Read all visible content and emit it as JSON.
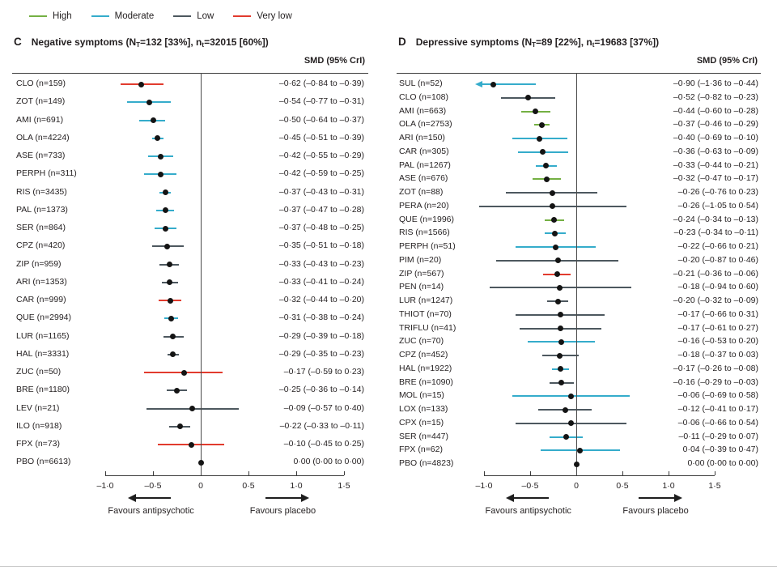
{
  "legend": {
    "items": [
      {
        "label": "High",
        "color": "#74b043"
      },
      {
        "label": "Moderate",
        "color": "#35accb"
      },
      {
        "label": "Low",
        "color": "#4d585f"
      },
      {
        "label": "Very low",
        "color": "#e23b2e"
      }
    ]
  },
  "certainty_colors": {
    "high": "#74b043",
    "moderate": "#35accb",
    "low": "#4d585f",
    "very_low": "#e23b2e"
  },
  "chart_data": [
    {
      "type": "scatter",
      "subtype": "forest-plot",
      "panel_letter": "C",
      "title": "Negative symptoms (NT=132 [33%], nt=32015 [60%])",
      "title_segments": [
        "Negative symptoms (N",
        {
          "sub": "T"
        },
        "=132 [33%], n",
        {
          "sub": "t"
        },
        "=32015 [60%])"
      ],
      "column_header": "SMD (95% CrI)",
      "xlim": [
        -1.0,
        1.5
      ],
      "x_ticks": [
        {
          "label": "–1·0",
          "v": -1.0
        },
        {
          "label": "–0·5",
          "v": -0.5
        },
        {
          "label": "0",
          "v": 0
        },
        {
          "label": "0·5",
          "v": 0.5
        },
        {
          "label": "1·0",
          "v": 1.0
        },
        {
          "label": "1·5",
          "v": 1.5
        }
      ],
      "x_arrow_left_label": "Favours antipsychotic",
      "x_arrow_right_label": "Favours placebo",
      "rows": [
        {
          "drug": "CLO (n=159)",
          "smd_text": "–0·62 (–0·84 to –0·39)",
          "mean": -0.62,
          "lo": -0.84,
          "hi": -0.39,
          "certainty": "very_low"
        },
        {
          "drug": "ZOT (n=149)",
          "smd_text": "–0·54 (–0·77 to –0·31)",
          "mean": -0.54,
          "lo": -0.77,
          "hi": -0.31,
          "certainty": "moderate"
        },
        {
          "drug": "AMI (n=691)",
          "smd_text": "–0·50 (–0·64 to –0·37)",
          "mean": -0.5,
          "lo": -0.64,
          "hi": -0.37,
          "certainty": "moderate"
        },
        {
          "drug": "OLA (n=4224)",
          "smd_text": "–0·45 (–0·51 to –0·39)",
          "mean": -0.45,
          "lo": -0.51,
          "hi": -0.39,
          "certainty": "moderate"
        },
        {
          "drug": "ASE (n=733)",
          "smd_text": "–0·42 (–0·55 to –0·29)",
          "mean": -0.42,
          "lo": -0.55,
          "hi": -0.29,
          "certainty": "moderate"
        },
        {
          "drug": "PERPH (n=311)",
          "smd_text": "–0·42 (–0·59 to –0·25)",
          "mean": -0.42,
          "lo": -0.59,
          "hi": -0.25,
          "certainty": "moderate"
        },
        {
          "drug": "RIS (n=3435)",
          "smd_text": "–0·37 (–0·43 to –0·31)",
          "mean": -0.37,
          "lo": -0.43,
          "hi": -0.31,
          "certainty": "moderate"
        },
        {
          "drug": "PAL (n=1373)",
          "smd_text": "–0·37 (–0·47 to –0·28)",
          "mean": -0.37,
          "lo": -0.47,
          "hi": -0.28,
          "certainty": "moderate"
        },
        {
          "drug": "SER (n=864)",
          "smd_text": "–0·37 (–0·48 to –0·25)",
          "mean": -0.37,
          "lo": -0.48,
          "hi": -0.25,
          "certainty": "moderate"
        },
        {
          "drug": "CPZ (n=420)",
          "smd_text": "–0·35 (–0·51 to –0·18)",
          "mean": -0.35,
          "lo": -0.51,
          "hi": -0.18,
          "certainty": "low"
        },
        {
          "drug": "ZIP (n=959)",
          "smd_text": "–0·33 (–0·43 to –0·23)",
          "mean": -0.33,
          "lo": -0.43,
          "hi": -0.23,
          "certainty": "low"
        },
        {
          "drug": "ARI (n=1353)",
          "smd_text": "–0·33 (–0·41 to –0·24)",
          "mean": -0.33,
          "lo": -0.41,
          "hi": -0.24,
          "certainty": "low"
        },
        {
          "drug": "CAR (n=999)",
          "smd_text": "–0·32 (–0·44 to –0·20)",
          "mean": -0.32,
          "lo": -0.44,
          "hi": -0.2,
          "certainty": "very_low"
        },
        {
          "drug": "QUE (n=2994)",
          "smd_text": "–0·31 (–0·38 to –0·24)",
          "mean": -0.31,
          "lo": -0.38,
          "hi": -0.24,
          "certainty": "moderate"
        },
        {
          "drug": "LUR (n=1165)",
          "smd_text": "–0·29 (–0·39 to –0·18)",
          "mean": -0.29,
          "lo": -0.39,
          "hi": -0.18,
          "certainty": "low"
        },
        {
          "drug": "HAL (n=3331)",
          "smd_text": "–0·29 (–0·35 to –0·23)",
          "mean": -0.29,
          "lo": -0.35,
          "hi": -0.23,
          "certainty": "low"
        },
        {
          "drug": "ZUC (n=50)",
          "smd_text": "–0·17 (–0·59 to 0·23)",
          "mean": -0.17,
          "lo": -0.59,
          "hi": 0.23,
          "certainty": "very_low"
        },
        {
          "drug": "BRE (n=1180)",
          "smd_text": "–0·25 (–0·36 to –0·14)",
          "mean": -0.25,
          "lo": -0.36,
          "hi": -0.14,
          "certainty": "low"
        },
        {
          "drug": "LEV (n=21)",
          "smd_text": "–0·09 (–0·57 to 0·40)",
          "mean": -0.09,
          "lo": -0.57,
          "hi": 0.4,
          "certainty": "low"
        },
        {
          "drug": "ILO (n=918)",
          "smd_text": "–0·22 (–0·33 to –0·11)",
          "mean": -0.22,
          "lo": -0.33,
          "hi": -0.11,
          "certainty": "low"
        },
        {
          "drug": "FPX (n=73)",
          "smd_text": "–0·10 (–0·45 to 0·25)",
          "mean": -0.1,
          "lo": -0.45,
          "hi": 0.25,
          "certainty": "very_low"
        },
        {
          "drug": "PBO (n=6613)",
          "smd_text": "0·00 (0·00 to 0·00)",
          "mean": 0.0,
          "lo": 0.0,
          "hi": 0.0,
          "certainty": "none"
        }
      ]
    },
    {
      "type": "scatter",
      "subtype": "forest-plot",
      "panel_letter": "D",
      "title": "Depressive symptoms (NT=89 [22%], nt=19683 [37%])",
      "title_segments": [
        "Depressive symptoms (N",
        {
          "sub": "T"
        },
        "=89 [22%], n",
        {
          "sub": "t"
        },
        "=19683 [37%])"
      ],
      "column_header": "SMD (95% CrI)",
      "xlim": [
        -1.0,
        1.5
      ],
      "x_ticks": [
        {
          "label": "–1·0",
          "v": -1.0
        },
        {
          "label": "–0·5",
          "v": -0.5
        },
        {
          "label": "0",
          "v": 0
        },
        {
          "label": "0·5",
          "v": 0.5
        },
        {
          "label": "1·0",
          "v": 1.0
        },
        {
          "label": "1·5",
          "v": 1.5
        }
      ],
      "x_arrow_left_label": "Favours antipsychotic",
      "x_arrow_right_label": "Favours placebo",
      "rows": [
        {
          "drug": "SUL (n=52)",
          "smd_text": "–0·90 (–1·36 to –0·44)",
          "mean": -0.9,
          "lo": -1.36,
          "hi": -0.44,
          "certainty": "moderate",
          "clipped_left": true
        },
        {
          "drug": "CLO (n=108)",
          "smd_text": "–0·52 (–0·82 to –0·23)",
          "mean": -0.52,
          "lo": -0.82,
          "hi": -0.23,
          "certainty": "low"
        },
        {
          "drug": "AMI (n=663)",
          "smd_text": "–0·44 (–0·60 to –0·28)",
          "mean": -0.44,
          "lo": -0.6,
          "hi": -0.28,
          "certainty": "high"
        },
        {
          "drug": "OLA (n=2753)",
          "smd_text": "–0·37 (–0·46 to –0·29)",
          "mean": -0.37,
          "lo": -0.46,
          "hi": -0.29,
          "certainty": "high"
        },
        {
          "drug": "ARI (n=150)",
          "smd_text": "–0·40 (–0·69 to –0·10)",
          "mean": -0.4,
          "lo": -0.69,
          "hi": -0.1,
          "certainty": "moderate"
        },
        {
          "drug": "CAR (n=305)",
          "smd_text": "–0·36 (–0·63 to –0·09)",
          "mean": -0.36,
          "lo": -0.63,
          "hi": -0.09,
          "certainty": "moderate"
        },
        {
          "drug": "PAL (n=1267)",
          "smd_text": "–0·33 (–0·44 to –0·21)",
          "mean": -0.33,
          "lo": -0.44,
          "hi": -0.21,
          "certainty": "moderate"
        },
        {
          "drug": "ASE (n=676)",
          "smd_text": "–0·32 (–0·47 to –0·17)",
          "mean": -0.32,
          "lo": -0.47,
          "hi": -0.17,
          "certainty": "high"
        },
        {
          "drug": "ZOT (n=88)",
          "smd_text": "–0·26 (–0·76 to 0·23)",
          "mean": -0.26,
          "lo": -0.76,
          "hi": 0.23,
          "certainty": "low"
        },
        {
          "drug": "PERA (n=20)",
          "smd_text": "–0·26 (–1·05 to 0·54)",
          "mean": -0.26,
          "lo": -1.05,
          "hi": 0.54,
          "certainty": "low"
        },
        {
          "drug": "QUE (n=1996)",
          "smd_text": "–0·24 (–0·34 to –0·13)",
          "mean": -0.24,
          "lo": -0.34,
          "hi": -0.13,
          "certainty": "high"
        },
        {
          "drug": "RIS (n=1566)",
          "smd_text": "–0·23 (–0·34 to –0·11)",
          "mean": -0.23,
          "lo": -0.34,
          "hi": -0.11,
          "certainty": "moderate"
        },
        {
          "drug": "PERPH (n=51)",
          "smd_text": "–0·22 (–0·66 to 0·21)",
          "mean": -0.22,
          "lo": -0.66,
          "hi": 0.21,
          "certainty": "moderate"
        },
        {
          "drug": "PIM (n=20)",
          "smd_text": "–0·20 (–0·87 to 0·46)",
          "mean": -0.2,
          "lo": -0.87,
          "hi": 0.46,
          "certainty": "low"
        },
        {
          "drug": "ZIP (n=567)",
          "smd_text": "–0·21 (–0·36 to –0·06)",
          "mean": -0.21,
          "lo": -0.36,
          "hi": -0.06,
          "certainty": "very_low"
        },
        {
          "drug": "PEN (n=14)",
          "smd_text": "–0·18 (–0·94 to 0·60)",
          "mean": -0.18,
          "lo": -0.94,
          "hi": 0.6,
          "certainty": "low"
        },
        {
          "drug": "LUR (n=1247)",
          "smd_text": "–0·20 (–0·32 to –0·09)",
          "mean": -0.2,
          "lo": -0.32,
          "hi": -0.09,
          "certainty": "low"
        },
        {
          "drug": "THIOT (n=70)",
          "smd_text": "–0·17 (–0·66 to 0·31)",
          "mean": -0.17,
          "lo": -0.66,
          "hi": 0.31,
          "certainty": "low"
        },
        {
          "drug": "TRIFLU (n=41)",
          "smd_text": "–0·17 (–0·61 to 0·27)",
          "mean": -0.17,
          "lo": -0.61,
          "hi": 0.27,
          "certainty": "low"
        },
        {
          "drug": "ZUC (n=70)",
          "smd_text": "–0·16 (–0·53 to 0·20)",
          "mean": -0.16,
          "lo": -0.53,
          "hi": 0.2,
          "certainty": "moderate"
        },
        {
          "drug": "CPZ (n=452)",
          "smd_text": "–0·18 (–0·37 to 0·03)",
          "mean": -0.18,
          "lo": -0.37,
          "hi": 0.03,
          "certainty": "low"
        },
        {
          "drug": "HAL (n=1922)",
          "smd_text": "–0·17 (–0·26 to –0·08)",
          "mean": -0.17,
          "lo": -0.26,
          "hi": -0.08,
          "certainty": "moderate"
        },
        {
          "drug": "BRE (n=1090)",
          "smd_text": "–0·16 (–0·29 to –0·03)",
          "mean": -0.16,
          "lo": -0.29,
          "hi": -0.03,
          "certainty": "low"
        },
        {
          "drug": "MOL (n=15)",
          "smd_text": "–0·06 (–0·69 to 0·58)",
          "mean": -0.06,
          "lo": -0.69,
          "hi": 0.58,
          "certainty": "moderate"
        },
        {
          "drug": "LOX (n=133)",
          "smd_text": "–0·12 (–0·41 to 0·17)",
          "mean": -0.12,
          "lo": -0.41,
          "hi": 0.17,
          "certainty": "low"
        },
        {
          "drug": "CPX (n=15)",
          "smd_text": "–0·06 (–0·66 to 0·54)",
          "mean": -0.06,
          "lo": -0.66,
          "hi": 0.54,
          "certainty": "low"
        },
        {
          "drug": "SER (n=447)",
          "smd_text": "–0·11 (–0·29 to 0·07)",
          "mean": -0.11,
          "lo": -0.29,
          "hi": 0.07,
          "certainty": "moderate"
        },
        {
          "drug": "FPX (n=62)",
          "smd_text": "0·04 (–0·39 to 0·47)",
          "mean": 0.04,
          "lo": -0.39,
          "hi": 0.47,
          "certainty": "moderate"
        },
        {
          "drug": "PBO (n=4823)",
          "smd_text": "0·00 (0·00 to 0·00)",
          "mean": 0.0,
          "lo": 0.0,
          "hi": 0.0,
          "certainty": "none"
        }
      ]
    }
  ]
}
